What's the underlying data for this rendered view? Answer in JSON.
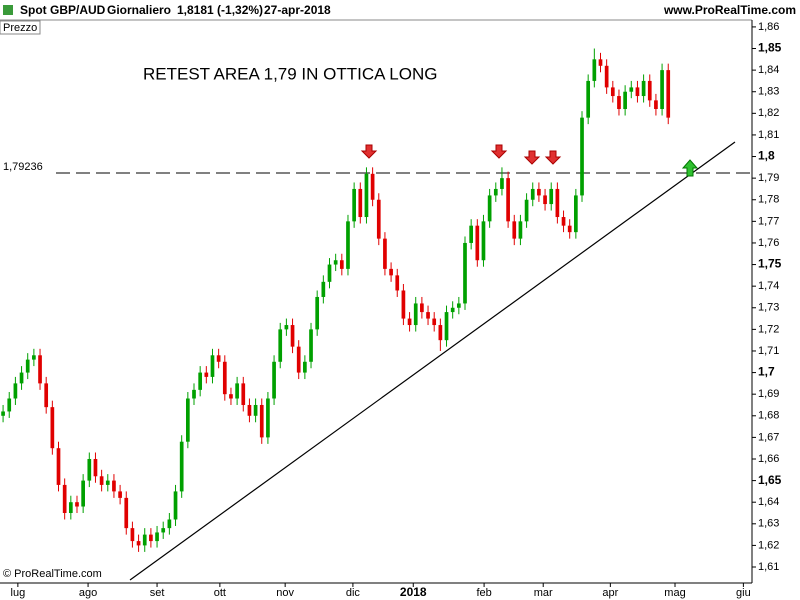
{
  "chart_data": {
    "type": "candlestick",
    "header": {
      "symbol": "Spot GBP/AUD",
      "period": "Giornaliero",
      "last": "1,8181 (-1,32%)",
      "date": "27-apr-2018",
      "site": "www.ProRealTime.com"
    },
    "panel_label": "Prezzo",
    "annotation": "RETEST AREA 1,79 IN OTTICA LONG",
    "copyright": "© ProRealTime.com",
    "hline": {
      "value": 1.79236,
      "label": "1,79236"
    },
    "up_color": "#00a000",
    "down_color": "#e00000",
    "open": [
      1.68,
      1.682,
      1.688,
      1.695,
      1.7,
      1.706,
      1.708,
      1.695,
      1.684,
      1.665,
      1.648,
      1.635,
      1.64,
      1.638,
      1.65,
      1.66,
      1.652,
      1.648,
      1.65,
      1.645,
      1.642,
      1.628,
      1.622,
      1.62,
      1.625,
      1.622,
      1.626,
      1.628,
      1.632,
      1.645,
      1.668,
      1.688,
      1.692,
      1.7,
      1.698,
      1.708,
      1.705,
      1.69,
      1.688,
      1.695,
      1.685,
      1.68,
      1.685,
      1.67,
      1.688,
      1.705,
      1.72,
      1.722,
      1.712,
      1.7,
      1.705,
      1.72,
      1.735,
      1.742,
      1.75,
      1.752,
      1.748,
      1.77,
      1.785,
      1.772,
      1.792,
      1.78,
      1.762,
      1.748,
      1.745,
      1.738,
      1.725,
      1.722,
      1.732,
      1.728,
      1.725,
      1.722,
      1.715,
      1.728,
      1.73,
      1.732,
      1.76,
      1.768,
      1.752,
      1.77,
      1.782,
      1.785,
      1.79,
      1.77,
      1.762,
      1.77,
      1.78,
      1.785,
      1.782,
      1.778,
      1.785,
      1.772,
      1.768,
      1.765,
      1.782,
      1.818,
      1.835,
      1.845,
      1.842,
      1.832,
      1.828,
      1.822,
      1.83,
      1.832,
      1.828,
      1.835,
      1.826,
      1.822,
      1.84
    ],
    "high": [
      1.685,
      1.691,
      1.698,
      1.703,
      1.709,
      1.711,
      1.711,
      1.698,
      1.687,
      1.668,
      1.651,
      1.643,
      1.643,
      1.653,
      1.663,
      1.663,
      1.655,
      1.653,
      1.653,
      1.648,
      1.645,
      1.631,
      1.625,
      1.628,
      1.628,
      1.629,
      1.631,
      1.635,
      1.648,
      1.671,
      1.691,
      1.695,
      1.703,
      1.703,
      1.711,
      1.711,
      1.708,
      1.693,
      1.698,
      1.698,
      1.688,
      1.688,
      1.688,
      1.691,
      1.708,
      1.723,
      1.725,
      1.725,
      1.715,
      1.708,
      1.723,
      1.738,
      1.745,
      1.753,
      1.755,
      1.755,
      1.773,
      1.788,
      1.788,
      1.795,
      1.795,
      1.783,
      1.765,
      1.751,
      1.748,
      1.741,
      1.728,
      1.735,
      1.735,
      1.731,
      1.728,
      1.725,
      1.731,
      1.733,
      1.735,
      1.763,
      1.771,
      1.771,
      1.773,
      1.785,
      1.788,
      1.795,
      1.793,
      1.773,
      1.773,
      1.783,
      1.788,
      1.788,
      1.785,
      1.788,
      1.788,
      1.775,
      1.771,
      1.785,
      1.821,
      1.838,
      1.85,
      1.848,
      1.845,
      1.835,
      1.831,
      1.833,
      1.835,
      1.835,
      1.838,
      1.838,
      1.829,
      1.843,
      1.843
    ],
    "low": [
      1.677,
      1.679,
      1.685,
      1.692,
      1.697,
      1.703,
      1.692,
      1.681,
      1.662,
      1.645,
      1.632,
      1.632,
      1.635,
      1.635,
      1.647,
      1.649,
      1.645,
      1.645,
      1.642,
      1.639,
      1.625,
      1.619,
      1.617,
      1.617,
      1.619,
      1.619,
      1.623,
      1.625,
      1.629,
      1.642,
      1.665,
      1.685,
      1.689,
      1.695,
      1.695,
      1.702,
      1.687,
      1.685,
      1.685,
      1.682,
      1.677,
      1.677,
      1.667,
      1.667,
      1.685,
      1.702,
      1.717,
      1.709,
      1.697,
      1.697,
      1.702,
      1.717,
      1.732,
      1.739,
      1.747,
      1.745,
      1.745,
      1.767,
      1.769,
      1.769,
      1.777,
      1.759,
      1.745,
      1.742,
      1.735,
      1.722,
      1.719,
      1.719,
      1.725,
      1.722,
      1.719,
      1.71,
      1.712,
      1.725,
      1.727,
      1.729,
      1.757,
      1.749,
      1.749,
      1.767,
      1.779,
      1.782,
      1.767,
      1.759,
      1.759,
      1.767,
      1.777,
      1.779,
      1.775,
      1.775,
      1.769,
      1.765,
      1.762,
      1.762,
      1.779,
      1.815,
      1.832,
      1.839,
      1.829,
      1.825,
      1.819,
      1.819,
      1.827,
      1.825,
      1.825,
      1.823,
      1.819,
      1.819,
      1.815
    ],
    "close": [
      1.682,
      1.688,
      1.695,
      1.7,
      1.706,
      1.708,
      1.695,
      1.684,
      1.665,
      1.648,
      1.635,
      1.64,
      1.638,
      1.65,
      1.66,
      1.652,
      1.648,
      1.65,
      1.645,
      1.642,
      1.628,
      1.622,
      1.62,
      1.625,
      1.622,
      1.626,
      1.628,
      1.632,
      1.645,
      1.668,
      1.688,
      1.692,
      1.7,
      1.698,
      1.708,
      1.705,
      1.69,
      1.688,
      1.695,
      1.685,
      1.68,
      1.685,
      1.67,
      1.688,
      1.705,
      1.72,
      1.722,
      1.712,
      1.7,
      1.705,
      1.72,
      1.735,
      1.742,
      1.75,
      1.752,
      1.748,
      1.77,
      1.785,
      1.772,
      1.792,
      1.78,
      1.762,
      1.748,
      1.745,
      1.738,
      1.725,
      1.722,
      1.732,
      1.728,
      1.725,
      1.722,
      1.715,
      1.728,
      1.73,
      1.732,
      1.76,
      1.768,
      1.752,
      1.77,
      1.782,
      1.785,
      1.79,
      1.77,
      1.762,
      1.77,
      1.78,
      1.785,
      1.782,
      1.778,
      1.785,
      1.772,
      1.768,
      1.765,
      1.782,
      1.818,
      1.835,
      1.845,
      1.842,
      1.832,
      1.828,
      1.822,
      1.83,
      1.832,
      1.828,
      1.835,
      1.826,
      1.822,
      1.84,
      1.818
    ],
    "xlim": [
      -0.5,
      121.6
    ],
    "xticks": [
      {
        "value": 2.4,
        "label": "lug"
      },
      {
        "value": 13.8,
        "label": "ago"
      },
      {
        "value": 25,
        "label": "set"
      },
      {
        "value": 35.2,
        "label": "ott"
      },
      {
        "value": 45.8,
        "label": "nov"
      },
      {
        "value": 56.8,
        "label": "dic"
      },
      {
        "value": 66.6,
        "label": "2018"
      },
      {
        "value": 78.1,
        "label": "feb"
      },
      {
        "value": 87.7,
        "label": "mar"
      },
      {
        "value": 98.6,
        "label": "apr"
      },
      {
        "value": 109.1,
        "label": "mag"
      },
      {
        "value": 120.2,
        "label": "giu"
      }
    ],
    "ylim": [
      1.6026,
      1.8632
    ],
    "yticks": [
      {
        "value": 1.61,
        "label": "1,61"
      },
      {
        "value": 1.62,
        "label": "1,62"
      },
      {
        "value": 1.63,
        "label": "1,63"
      },
      {
        "value": 1.64,
        "label": "1,64"
      },
      {
        "value": 1.65,
        "label": "1,65"
      },
      {
        "value": 1.66,
        "label": "1,66"
      },
      {
        "value": 1.67,
        "label": "1,67"
      },
      {
        "value": 1.68,
        "label": "1,68"
      },
      {
        "value": 1.69,
        "label": "1,69"
      },
      {
        "value": 1.7,
        "label": "1,7"
      },
      {
        "value": 1.71,
        "label": "1,71"
      },
      {
        "value": 1.72,
        "label": "1,72"
      },
      {
        "value": 1.73,
        "label": "1,73"
      },
      {
        "value": 1.74,
        "label": "1,74"
      },
      {
        "value": 1.75,
        "label": "1,75"
      },
      {
        "value": 1.76,
        "label": "1,76"
      },
      {
        "value": 1.77,
        "label": "1,77"
      },
      {
        "value": 1.78,
        "label": "1,78"
      },
      {
        "value": 1.79,
        "label": "1,79"
      },
      {
        "value": 1.8,
        "label": "1,8"
      },
      {
        "value": 1.81,
        "label": "1,81"
      },
      {
        "value": 1.82,
        "label": "1,82"
      },
      {
        "value": 1.83,
        "label": "1,83"
      },
      {
        "value": 1.84,
        "label": "1,84"
      },
      {
        "value": 1.85,
        "label": "1,85"
      },
      {
        "value": 1.86,
        "label": "1,86"
      }
    ]
  }
}
